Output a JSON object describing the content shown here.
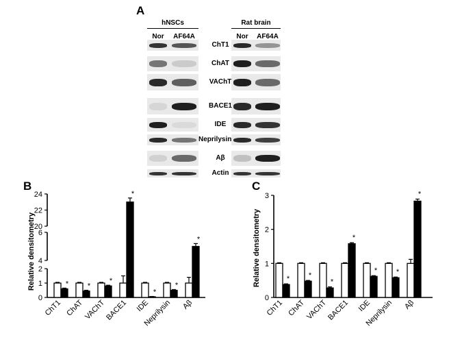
{
  "panel_a": {
    "letter": "A",
    "groups": [
      {
        "title": "hNSCs",
        "columns": [
          "Nor",
          "AF64A"
        ]
      },
      {
        "title": "Rat brain",
        "columns": [
          "Nor",
          "AF64A"
        ]
      }
    ],
    "proteins": [
      "ChT1",
      "ChAT",
      "VAChT",
      "BACE1",
      "IDE",
      "Neprilysin",
      "Aβ",
      "Actin"
    ]
  },
  "panel_b_letter": "B",
  "panel_c_letter": "C",
  "chart_data": [
    {
      "type": "bar",
      "panel": "B",
      "ylabel": "Relative densitometry",
      "categories": [
        "ChT1",
        "ChAT",
        "VAChT",
        "BACE1",
        "IDE",
        "Neprilysin",
        "Aβ"
      ],
      "yticks": [
        "0",
        "1",
        "2",
        "4",
        "6",
        "20",
        "22",
        "24"
      ],
      "broken_axis": true,
      "series": [
        {
          "fill": "white",
          "values": [
            1.0,
            1.0,
            1.0,
            1.0,
            1.0,
            1.0,
            1.0
          ],
          "errors": [
            0.05,
            0.05,
            0.05,
            0.5,
            0.05,
            0.05,
            0.4
          ]
        },
        {
          "fill": "black",
          "values": [
            0.6,
            0.45,
            0.8,
            23.0,
            0.05,
            0.5,
            5.0
          ],
          "errors": [
            0.05,
            0.05,
            0.05,
            0.5,
            0.02,
            0.05,
            0.2
          ]
        }
      ],
      "significance": [
        "*",
        "*",
        "*",
        "*",
        "*",
        "*",
        "*"
      ]
    },
    {
      "type": "bar",
      "panel": "C",
      "ylabel": "Relative densitometry",
      "categories": [
        "ChT1",
        "ChAT",
        "VAChT",
        "BACE1",
        "IDE",
        "Neprilysin",
        "Aβ"
      ],
      "ylim": [
        0,
        3
      ],
      "yticks": [
        "0",
        "1",
        "2",
        "3"
      ],
      "series": [
        {
          "fill": "white",
          "values": [
            1.0,
            1.0,
            1.0,
            1.0,
            1.0,
            1.0,
            1.0
          ],
          "errors": [
            0.02,
            0.02,
            0.02,
            0.02,
            0.02,
            0.02,
            0.12
          ]
        },
        {
          "fill": "black",
          "values": [
            0.38,
            0.48,
            0.28,
            1.58,
            0.62,
            0.58,
            2.83
          ],
          "errors": [
            0.02,
            0.02,
            0.03,
            0.03,
            0.02,
            0.02,
            0.06
          ]
        }
      ],
      "significance": [
        "*",
        "*",
        "*",
        "*",
        "*",
        "*",
        "*"
      ]
    }
  ]
}
